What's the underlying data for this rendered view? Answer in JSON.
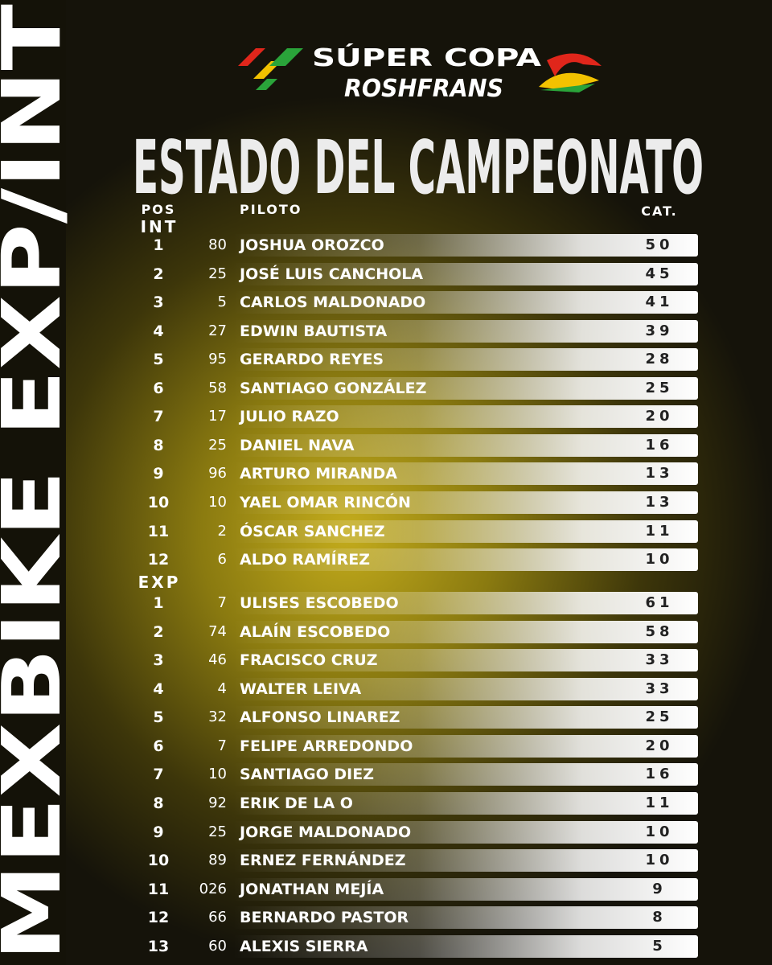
{
  "brand": {
    "line1": "SÚPER COPA",
    "line2": "ROSHFRANS"
  },
  "side_title": "MEXBIKE EXP/INT",
  "title": "ESTADO DEL CAMPEONATO",
  "headers": {
    "pos": "POS",
    "pilot": "PILOTO",
    "points": "CAT."
  },
  "sections": [
    {
      "label": "INT",
      "rows": [
        [
          "1",
          "80",
          "JOSHUA OROZCO",
          "50"
        ],
        [
          "2",
          "25",
          "JOSÉ LUIS CANCHOLA",
          "45"
        ],
        [
          "3",
          "5",
          "CARLOS MALDONADO",
          "41"
        ],
        [
          "4",
          "27",
          "EDWIN BAUTISTA",
          "39"
        ],
        [
          "5",
          "95",
          "GERARDO REYES",
          "28"
        ],
        [
          "6",
          "58",
          "SANTIAGO GONZÁLEZ",
          "25"
        ],
        [
          "7",
          "17",
          "JULIO RAZO",
          "20"
        ],
        [
          "8",
          "25",
          "DANIEL NAVA",
          "16"
        ],
        [
          "9",
          "96",
          "ARTURO MIRANDA",
          "13"
        ],
        [
          "10",
          "10",
          "YAEL OMAR RINCÓN",
          "13"
        ],
        [
          "11",
          "2",
          "ÓSCAR SANCHEZ",
          "11"
        ],
        [
          "12",
          "6",
          "ALDO RAMÍREZ",
          "10"
        ]
      ]
    },
    {
      "label": "EXP",
      "rows": [
        [
          "1",
          "7",
          "ULISES ESCOBEDO",
          "61"
        ],
        [
          "2",
          "74",
          "ALAÍN ESCOBEDO",
          "58"
        ],
        [
          "3",
          "46",
          "FRACISCO CRUZ",
          "33"
        ],
        [
          "4",
          "4",
          "WALTER LEIVA",
          "33"
        ],
        [
          "5",
          "32",
          "ALFONSO LINAREZ",
          "25"
        ],
        [
          "6",
          "7",
          "FELIPE ARREDONDO",
          "20"
        ],
        [
          "7",
          "10",
          "SANTIAGO DIEZ",
          "16"
        ],
        [
          "8",
          "92",
          "ERIK DE LA O",
          "11"
        ],
        [
          "9",
          "25",
          "JORGE MALDONADO",
          "10"
        ],
        [
          "10",
          "89",
          "ERNEZ FERNÁNDEZ",
          "10"
        ],
        [
          "11",
          "026",
          "JONATHAN MEJÍA",
          "9"
        ],
        [
          "12",
          "66",
          "BERNARDO PASTOR",
          "8"
        ],
        [
          "13",
          "60",
          "ALEXIS SIERRA",
          "5"
        ]
      ]
    }
  ]
}
